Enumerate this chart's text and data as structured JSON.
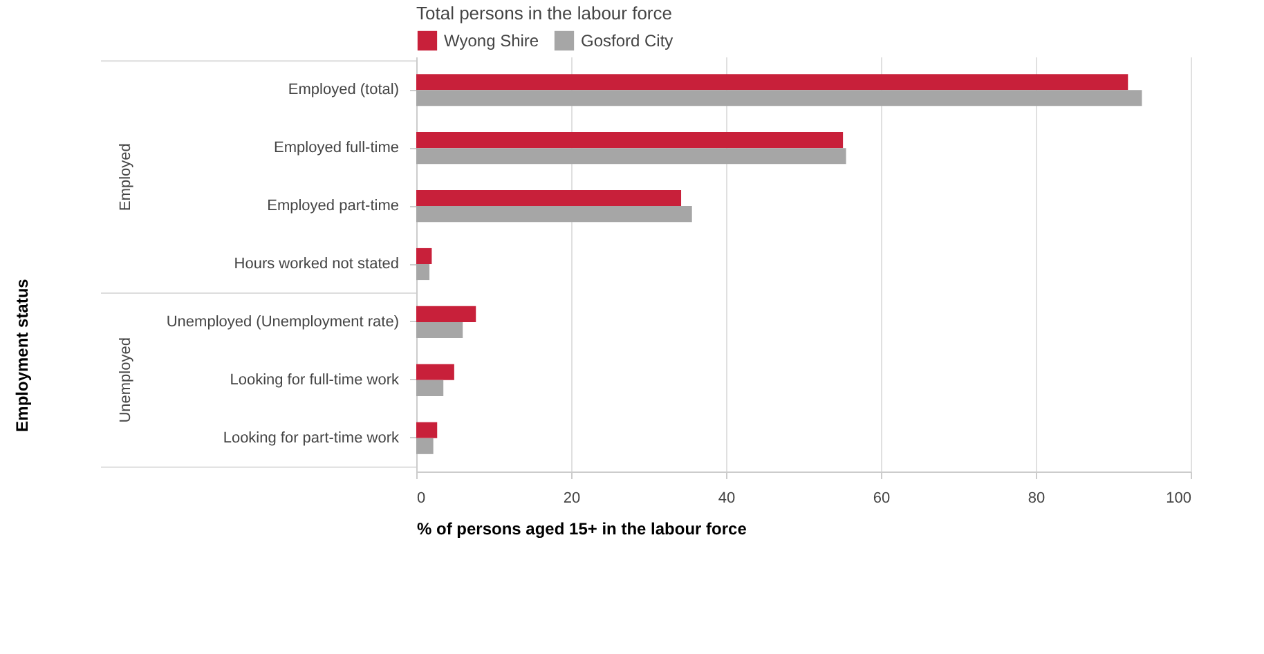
{
  "chart_data": {
    "type": "bar",
    "orientation": "horizontal",
    "title": "Total persons in the labour force",
    "xlabel": "% of persons aged 15+ in the labour force",
    "categories": [
      "Employed (total)",
      "Employed full-time",
      "Employed part-time",
      "Hours worked not stated",
      "Unemployed (Unemployment rate)",
      "Looking for full-time work",
      "Looking for part-time work"
    ],
    "series": [
      {
        "name": "Wyong Shire",
        "color": "#c8203a",
        "values": [
          91.9,
          55.1,
          34.2,
          2.0,
          7.7,
          4.9,
          2.7
        ]
      },
      {
        "name": "Gosford City",
        "color": "#a6a6a6",
        "values": [
          93.7,
          55.5,
          35.6,
          1.7,
          6.0,
          3.5,
          2.2
        ]
      }
    ],
    "annotations": [
      "Employed",
      "Unemployed",
      "Employment status"
    ],
    "xlim": [
      0,
      100
    ],
    "xticks": [
      0,
      20,
      40,
      60,
      80,
      100
    ],
    "grid": "x",
    "legend": "top left"
  }
}
